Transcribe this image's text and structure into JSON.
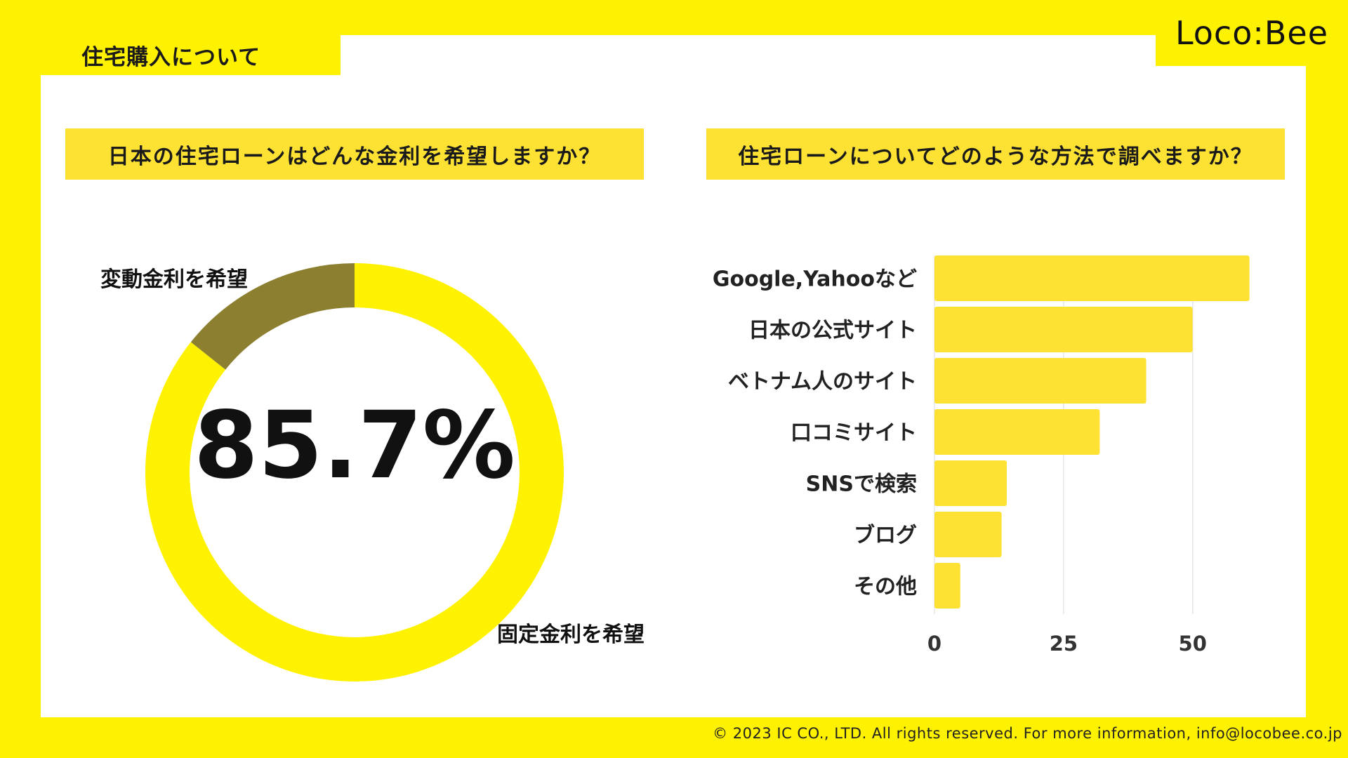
{
  "header": {
    "tab_title": "住宅購入について",
    "logo": "Loco:Bee"
  },
  "footer": {
    "copyright": "© 2023 IC CO., LTD. All rights reserved. For more information, info@locobee.co.jp"
  },
  "colors": {
    "background": "#fff200",
    "panel": "#ffffff",
    "question_box": "#fde234",
    "donut_main": "#fff200",
    "donut_minor": "#8c7f2f",
    "bar": "#fde234",
    "gridline": "#e6e6e6"
  },
  "chart_data": [
    {
      "type": "pie",
      "title": "日本の住宅ローンはどんな金利を希望しますか？",
      "center_label": "85.7%",
      "slices": [
        {
          "label": "固定金利を希望",
          "value": 85.7
        },
        {
          "label": "変動金利を希望",
          "value": 14.3
        }
      ]
    },
    {
      "type": "bar",
      "orientation": "horizontal",
      "title": "住宅ローンについてどのような方法で調べますか？",
      "categories": [
        "Google,Yahooなど",
        "日本の公式サイト",
        "ベトナム人のサイト",
        "口コミサイト",
        "SNSで検索",
        "ブログ",
        "その他"
      ],
      "values": [
        61,
        50,
        41,
        32,
        14,
        13,
        5
      ],
      "xlim": [
        0,
        62
      ],
      "xticks": [
        "0",
        "25",
        "50"
      ],
      "grid": true
    }
  ]
}
